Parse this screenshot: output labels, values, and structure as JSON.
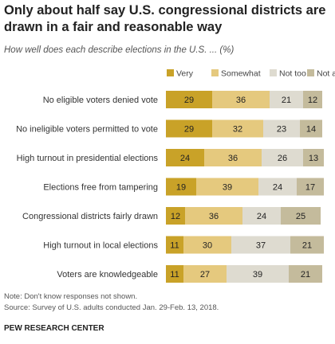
{
  "title": "Only about half say U.S. congressional districts are drawn in a fair and reasonable way",
  "subtitle": "How well does each describe elections in the U.S. ... (%)",
  "chart_data": {
    "type": "bar",
    "stacked": true,
    "orientation": "horizontal",
    "categories": [
      "No eligible voters denied vote",
      "No ineligible voters permitted to vote",
      "High turnout in presidential elections",
      "Elections free from tampering",
      "Congressional districts fairly drawn",
      "High turnout in local elections",
      "Voters are knowledgeable"
    ],
    "series": [
      {
        "name": "Very",
        "color": "#c9a228",
        "values": [
          29,
          29,
          24,
          19,
          12,
          11,
          11
        ]
      },
      {
        "name": "Somewhat",
        "color": "#e5c97e",
        "values": [
          36,
          32,
          36,
          39,
          36,
          30,
          27
        ]
      },
      {
        "name": "Not too",
        "color": "#dedbd0",
        "values": [
          21,
          23,
          26,
          24,
          24,
          37,
          39
        ]
      },
      {
        "name": "Not at all",
        "color": "#c4bb9c",
        "values": [
          12,
          14,
          13,
          17,
          25,
          21,
          21
        ]
      }
    ],
    "legend_position": "top-right",
    "xlim": [
      0,
      100
    ]
  },
  "notes": {
    "line1": "Note: Don't know responses not shown.",
    "line2": "Source: Survey of U.S. adults conducted Jan. 29-Feb. 13, 2018."
  },
  "source_org": "PEW RESEARCH CENTER"
}
